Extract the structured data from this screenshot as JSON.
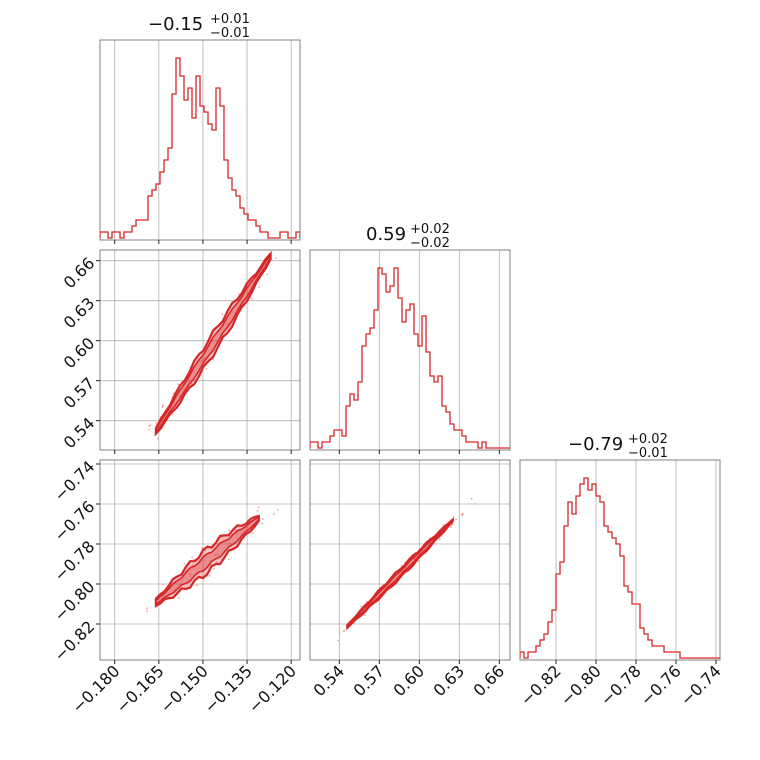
{
  "colors": {
    "series": "#d62728",
    "points": "#f4a3a6",
    "grid": "#b0b0b0",
    "frame": "#808080"
  },
  "chart_data": {
    "type": "corner",
    "parameters": [
      {
        "title_main": "−0.15",
        "title_sup": "+0.01",
        "title_sub": "−0.01",
        "range": [
          -0.185,
          -0.117
        ],
        "ticks": [
          -0.18,
          -0.165,
          -0.15,
          -0.135,
          -0.12
        ],
        "tick_labels": [
          "−0.180",
          "−0.165",
          "−0.150",
          "−0.135",
          "−0.120"
        ],
        "hist_edges_start": -0.185,
        "hist_bin_width": 0.00136,
        "hist_counts": [
          1,
          1,
          0,
          1,
          1,
          0,
          1,
          1,
          2,
          3,
          3,
          3,
          7,
          8,
          9,
          11,
          13,
          15,
          24,
          30,
          27,
          23,
          25,
          20,
          27,
          22,
          21,
          19,
          18,
          25,
          22,
          13,
          10,
          8,
          7,
          5,
          4,
          3,
          3,
          2,
          1,
          1,
          0,
          0,
          0,
          1,
          1,
          0,
          0,
          1
        ]
      },
      {
        "title_main": "0.59",
        "title_sup": "+0.02",
        "title_sub": "−0.02",
        "range": [
          0.518,
          0.668
        ],
        "ticks": [
          0.54,
          0.57,
          0.6,
          0.63,
          0.66
        ],
        "tick_labels": [
          "0.54",
          "0.57",
          "0.60",
          "0.63",
          "0.66"
        ],
        "hist_edges_start": 0.518,
        "hist_bin_width": 0.003,
        "hist_counts": [
          1,
          1,
          0,
          1,
          1,
          2,
          3,
          3,
          2,
          7,
          9,
          8,
          11,
          17,
          19,
          20,
          23,
          30,
          29,
          26,
          27,
          30,
          25,
          21,
          23,
          24,
          19,
          17,
          22,
          16,
          12,
          11,
          12,
          7,
          6,
          4,
          3,
          3,
          2,
          1,
          1,
          1,
          0,
          1,
          0,
          0,
          0,
          0,
          0,
          0
        ]
      },
      {
        "title_main": "−0.79",
        "title_sup": "+0.02",
        "title_sub": "−0.01",
        "range": [
          -0.838,
          -0.738
        ],
        "ticks": [
          -0.82,
          -0.8,
          -0.78,
          -0.76,
          -0.74
        ],
        "tick_labels": [
          "−0.82",
          "−0.80",
          "−0.78",
          "−0.76",
          "−0.74"
        ],
        "hist_edges_start": -0.838,
        "hist_bin_width": 0.002,
        "hist_counts": [
          1,
          0,
          1,
          1,
          2,
          3,
          4,
          6,
          8,
          14,
          16,
          22,
          26,
          24,
          27,
          29,
          30,
          28,
          29,
          27,
          26,
          22,
          21,
          20,
          19,
          17,
          12,
          11,
          9,
          9,
          5,
          4,
          3,
          2,
          2,
          2,
          1,
          1,
          1,
          1,
          0,
          0,
          0,
          0,
          0,
          0,
          0,
          0,
          0,
          0
        ]
      }
    ],
    "pairs": [
      {
        "x": 0,
        "y": 1,
        "slope": 3.36,
        "intercept": 1.09,
        "x_extent": [
          -0.166,
          -0.127
        ],
        "outer_halfwidth": 0.008,
        "inner_halfwidth": 0.004
      },
      {
        "x": 0,
        "y": 2,
        "slope": 1.2,
        "intercept": -0.61,
        "x_extent": [
          -0.166,
          -0.131
        ],
        "outer_halfwidth": 0.006,
        "inner_halfwidth": 0.003
      },
      {
        "x": 1,
        "y": 2,
        "slope": 0.67,
        "intercept": -1.187,
        "x_extent": [
          0.546,
          0.625
        ],
        "outer_halfwidth": 0.0022,
        "inner_halfwidth": 0.0011
      }
    ]
  }
}
